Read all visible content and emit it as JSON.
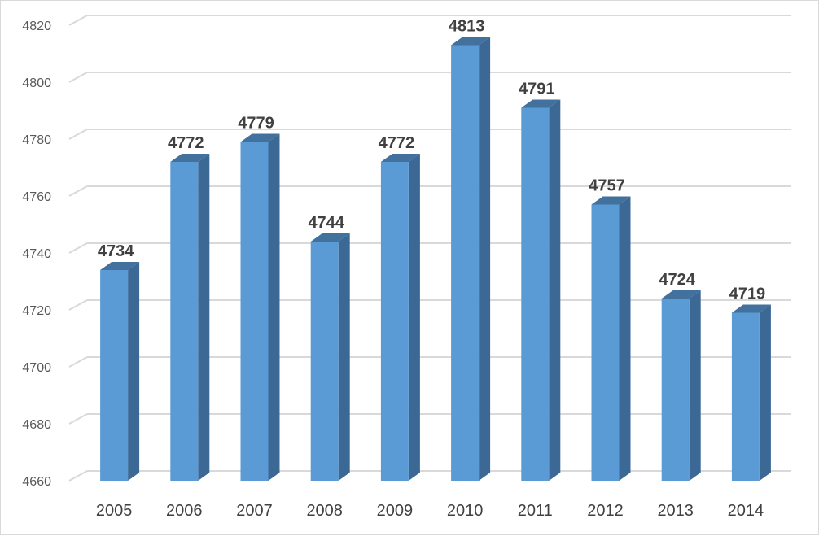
{
  "colors": {
    "bar_front": "#5b9bd5",
    "bar_side": "#3c6896",
    "bar_top": "#41719c",
    "grid": "#d9d9d9",
    "text": "#404040"
  },
  "chart_data": {
    "type": "bar",
    "categories": [
      "2005",
      "2006",
      "2007",
      "2008",
      "2009",
      "2010",
      "2011",
      "2012",
      "2013",
      "2014"
    ],
    "values": [
      4734,
      4772,
      4779,
      4744,
      4772,
      4813,
      4791,
      4757,
      4724,
      4719
    ],
    "value_labels": [
      "4734",
      "4772",
      "4779",
      "4744",
      "4772",
      "4813",
      "4791",
      "4757",
      "4724",
      "4719"
    ],
    "yticks": [
      "4660",
      "4680",
      "4700",
      "4720",
      "4740",
      "4760",
      "4780",
      "4800",
      "4820"
    ],
    "ylim": [
      4660,
      4820
    ],
    "grid": true,
    "legend": "none",
    "style": "3d-column"
  }
}
